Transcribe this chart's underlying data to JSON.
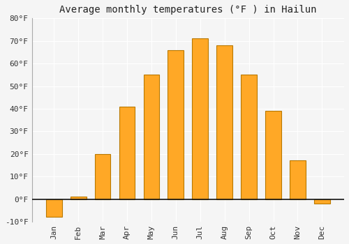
{
  "title": "Average monthly temperatures (°F ) in Hailun",
  "months": [
    "Jan",
    "Feb",
    "Mar",
    "Apr",
    "May",
    "Jun",
    "Jul",
    "Aug",
    "Sep",
    "Oct",
    "Nov",
    "Dec"
  ],
  "values": [
    -8,
    1,
    20,
    41,
    55,
    66,
    71,
    68,
    55,
    39,
    17,
    -2
  ],
  "bar_color": "#FFA826",
  "bar_edge_color": "#B87800",
  "ylim": [
    -10,
    80
  ],
  "yticks": [
    -10,
    0,
    10,
    20,
    30,
    40,
    50,
    60,
    70,
    80
  ],
  "ytick_labels": [
    "-10°F",
    "0°F",
    "10°F",
    "20°F",
    "30°F",
    "40°F",
    "50°F",
    "60°F",
    "70°F",
    "80°F"
  ],
  "background_color": "#f5f5f5",
  "plot_bg_color": "#f5f5f5",
  "grid_color": "#ffffff",
  "title_fontsize": 10,
  "tick_fontsize": 8,
  "zero_line_color": "#111111",
  "figsize": [
    5.0,
    3.5
  ],
  "dpi": 100
}
